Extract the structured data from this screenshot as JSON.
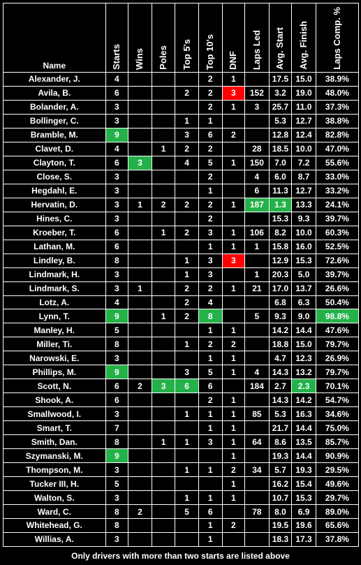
{
  "table": {
    "headers": [
      "Name",
      "Starts",
      "Wins",
      "Poles",
      "Top 5's",
      "Top 10's",
      "DNF",
      "Laps Led",
      "Avg. Start",
      "Avg. Finish",
      "Laps Comp. %"
    ],
    "colors": {
      "green": "#24b14a",
      "red": "#ff0000"
    },
    "rows": [
      {
        "cells": [
          "Alexander, J.",
          "4",
          "",
          "",
          "",
          "2",
          "1",
          "",
          "17.5",
          "15.0",
          "38.9%"
        ],
        "highlight": {}
      },
      {
        "cells": [
          "Avila, B.",
          "6",
          "",
          "",
          "2",
          "2",
          "3",
          "152",
          "3.2",
          "19.0",
          "48.0%"
        ],
        "highlight": {
          "6": "red"
        }
      },
      {
        "cells": [
          "Bolander, A.",
          "3",
          "",
          "",
          "",
          "2",
          "1",
          "3",
          "25.7",
          "11.0",
          "37.3%"
        ],
        "highlight": {}
      },
      {
        "cells": [
          "Bollinger, C.",
          "3",
          "",
          "",
          "1",
          "1",
          "",
          "",
          "5.3",
          "12.7",
          "38.8%"
        ],
        "highlight": {}
      },
      {
        "cells": [
          "Bramble, M.",
          "9",
          "",
          "",
          "3",
          "6",
          "2",
          "",
          "12.8",
          "12.4",
          "82.8%"
        ],
        "highlight": {
          "1": "green"
        }
      },
      {
        "cells": [
          "Clavet, D.",
          "4",
          "",
          "1",
          "2",
          "2",
          "",
          "28",
          "18.5",
          "10.0",
          "47.0%"
        ],
        "highlight": {}
      },
      {
        "cells": [
          "Clayton, T.",
          "6",
          "3",
          "",
          "4",
          "5",
          "1",
          "150",
          "7.0",
          "7.2",
          "55.6%"
        ],
        "highlight": {
          "2": "green"
        }
      },
      {
        "cells": [
          "Close, S.",
          "3",
          "",
          "",
          "",
          "2",
          "",
          "4",
          "6.0",
          "8.7",
          "33.0%"
        ],
        "highlight": {}
      },
      {
        "cells": [
          "Hegdahl, E.",
          "3",
          "",
          "",
          "",
          "1",
          "",
          "6",
          "11.3",
          "12.7",
          "33.2%"
        ],
        "highlight": {}
      },
      {
        "cells": [
          "Hervatin, D.",
          "3",
          "1",
          "2",
          "2",
          "2",
          "1",
          "187",
          "1.3",
          "13.3",
          "24.1%"
        ],
        "highlight": {
          "7": "green",
          "8": "green"
        }
      },
      {
        "cells": [
          "Hines, C.",
          "3",
          "",
          "",
          "",
          "2",
          "",
          "",
          "15.3",
          "9.3",
          "39.7%"
        ],
        "highlight": {}
      },
      {
        "cells": [
          "Kroeber, T.",
          "6",
          "",
          "1",
          "2",
          "3",
          "1",
          "106",
          "8.2",
          "10.0",
          "60.3%"
        ],
        "highlight": {}
      },
      {
        "cells": [
          "Lathan, M.",
          "6",
          "",
          "",
          "",
          "1",
          "1",
          "1",
          "15.8",
          "16.0",
          "52.5%"
        ],
        "highlight": {}
      },
      {
        "cells": [
          "Lindley, B.",
          "8",
          "",
          "",
          "1",
          "3",
          "3",
          "",
          "12.9",
          "15.3",
          "72.6%"
        ],
        "highlight": {
          "6": "red"
        }
      },
      {
        "cells": [
          "Lindmark, H.",
          "3",
          "",
          "",
          "1",
          "3",
          "",
          "1",
          "20.3",
          "5.0",
          "39.7%"
        ],
        "highlight": {}
      },
      {
        "cells": [
          "Lindmark, S.",
          "3",
          "1",
          "",
          "2",
          "2",
          "1",
          "21",
          "17.0",
          "13.7",
          "26.6%"
        ],
        "highlight": {}
      },
      {
        "cells": [
          "Lotz, A.",
          "4",
          "",
          "",
          "2",
          "4",
          "",
          "",
          "6.8",
          "6.3",
          "50.4%"
        ],
        "highlight": {}
      },
      {
        "cells": [
          "Lynn, T.",
          "9",
          "",
          "1",
          "2",
          "8",
          "",
          "5",
          "9.3",
          "9.0",
          "98.8%"
        ],
        "highlight": {
          "1": "green",
          "5": "green",
          "10": "green"
        }
      },
      {
        "cells": [
          "Manley, H.",
          "5",
          "",
          "",
          "",
          "1",
          "1",
          "",
          "14.2",
          "14.4",
          "47.6%"
        ],
        "highlight": {}
      },
      {
        "cells": [
          "Miller, Ti.",
          "8",
          "",
          "",
          "1",
          "2",
          "2",
          "",
          "18.8",
          "15.0",
          "79.7%"
        ],
        "highlight": {}
      },
      {
        "cells": [
          "Narowski, E.",
          "3",
          "",
          "",
          "",
          "1",
          "1",
          "",
          "4.7",
          "12.3",
          "26.9%"
        ],
        "highlight": {}
      },
      {
        "cells": [
          "Phillips, M.",
          "9",
          "",
          "",
          "3",
          "5",
          "1",
          "4",
          "14.3",
          "13.2",
          "79.7%"
        ],
        "highlight": {
          "1": "green"
        }
      },
      {
        "cells": [
          "Scott, N.",
          "6",
          "2",
          "3",
          "6",
          "6",
          "",
          "184",
          "2.7",
          "2.3",
          "70.1%"
        ],
        "highlight": {
          "3": "green",
          "4": "green",
          "9": "green"
        }
      },
      {
        "cells": [
          "Shook, A.",
          "6",
          "",
          "",
          "",
          "2",
          "1",
          "",
          "14.3",
          "14.2",
          "54.7%"
        ],
        "highlight": {}
      },
      {
        "cells": [
          "Smallwood, I.",
          "3",
          "",
          "",
          "1",
          "1",
          "1",
          "85",
          "5.3",
          "16.3",
          "34.6%"
        ],
        "highlight": {}
      },
      {
        "cells": [
          "Smart, T.",
          "7",
          "",
          "",
          "",
          "1",
          "1",
          "",
          "21.7",
          "14.4",
          "75.0%"
        ],
        "highlight": {}
      },
      {
        "cells": [
          "Smith, Dan.",
          "8",
          "",
          "1",
          "1",
          "3",
          "1",
          "64",
          "8.6",
          "13.5",
          "85.7%"
        ],
        "highlight": {}
      },
      {
        "cells": [
          "Szymanski, M.",
          "9",
          "",
          "",
          "",
          "",
          "1",
          "",
          "19.3",
          "14.4",
          "90.9%"
        ],
        "highlight": {
          "1": "green"
        }
      },
      {
        "cells": [
          "Thompson, M.",
          "3",
          "",
          "",
          "1",
          "1",
          "2",
          "34",
          "5.7",
          "19.3",
          "29.5%"
        ],
        "highlight": {}
      },
      {
        "cells": [
          "Tucker III, H.",
          "5",
          "",
          "",
          "",
          "",
          "1",
          "",
          "16.2",
          "15.4",
          "49.6%"
        ],
        "highlight": {}
      },
      {
        "cells": [
          "Walton, S.",
          "3",
          "",
          "",
          "1",
          "1",
          "1",
          "",
          "10.7",
          "15.3",
          "29.7%"
        ],
        "highlight": {}
      },
      {
        "cells": [
          "Ward, C.",
          "8",
          "2",
          "",
          "5",
          "6",
          "",
          "78",
          "8.0",
          "6.9",
          "89.0%"
        ],
        "highlight": {}
      },
      {
        "cells": [
          "Whitehead, G.",
          "8",
          "",
          "",
          "",
          "1",
          "2",
          "",
          "19.5",
          "19.6",
          "65.6%"
        ],
        "highlight": {}
      },
      {
        "cells": [
          "Willias, A.",
          "3",
          "",
          "",
          "",
          "1",
          "",
          "",
          "18.3",
          "17.3",
          "37.8%"
        ],
        "highlight": {}
      }
    ]
  },
  "footnote": "Only drivers with more than two starts are listed above"
}
